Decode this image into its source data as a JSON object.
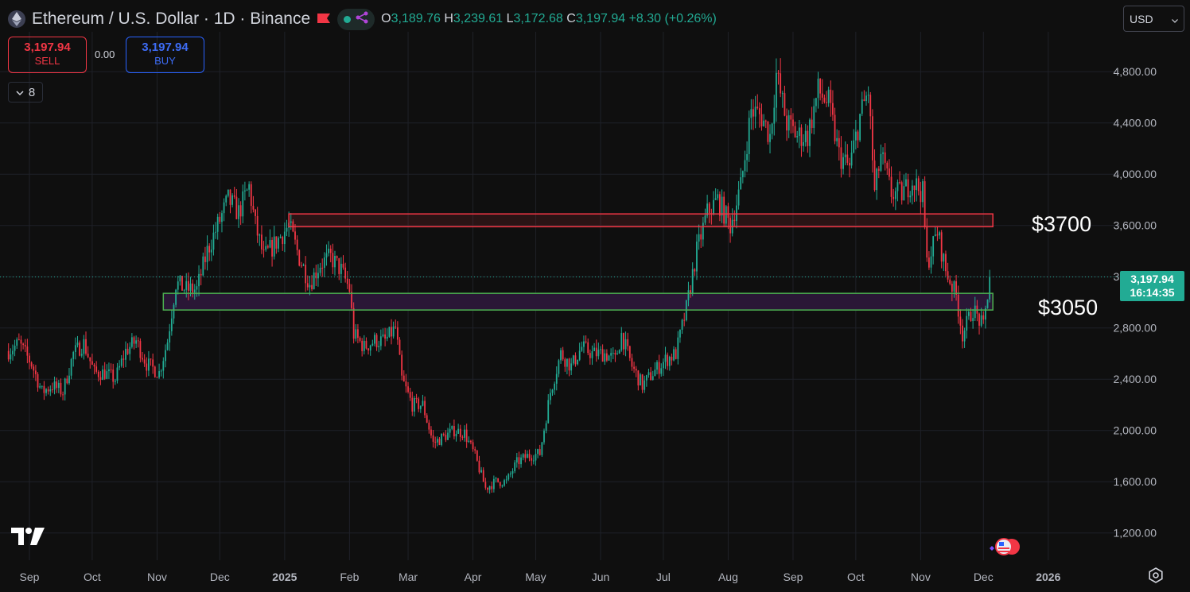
{
  "header": {
    "symbol_title": "Ethereum / U.S. Dollar · 1D · Binance",
    "ohlc": {
      "open_label": "O",
      "open": "3,189.76",
      "high_label": "H",
      "high": "3,239.61",
      "low_label": "L",
      "low": "3,172.68",
      "close_label": "C",
      "close": "3,197.94",
      "change": "+8.30 (+0.26%)"
    },
    "icons": [
      "ethereum-icon",
      "flag-icon",
      "dot-icon",
      "share-icon"
    ]
  },
  "trade": {
    "sell_price": "3,197.94",
    "sell_label": "SELL",
    "spread": "0.00",
    "buy_price": "3,197.94",
    "buy_label": "BUY"
  },
  "indicators": {
    "collapse_count": "8"
  },
  "currency": {
    "selected": "USD"
  },
  "last_price": {
    "price": "3,197.94",
    "countdown": "16:14:35"
  },
  "annotations": {
    "resistance_label": "$3700",
    "support_label": "$3050"
  },
  "colors": {
    "up": "#22ab94",
    "down": "#f23645",
    "background": "#0f0f0f",
    "resistance_box": "#f23645",
    "support_box": "#4caf50",
    "support_fill": "#2a1736"
  },
  "chart_data": {
    "type": "candlestick",
    "title": "Ethereum / U.S. Dollar · 1D · Binance",
    "ylim": [
      1050,
      4960
    ],
    "y_ticks": [
      1200,
      1600,
      2000,
      2400,
      2800,
      3200,
      3600,
      4000,
      4400,
      4800
    ],
    "y_tick_labels": [
      "1,200.00",
      "1,600.00",
      "2,000.00",
      "2,400.00",
      "2,800.00",
      "3,200.00",
      "3,600.00",
      "4,000.00",
      "4,400.00",
      "4,800.00"
    ],
    "x_ticks": [
      "Sep",
      "Oct",
      "Nov",
      "Dec",
      "2025",
      "Feb",
      "Mar",
      "Apr",
      "May",
      "Jun",
      "Jul",
      "Aug",
      "Sep",
      "Oct",
      "Nov",
      "Dec",
      "2026"
    ],
    "x_tick_dates": [
      "2024-09-01",
      "2024-10-01",
      "2024-11-01",
      "2024-12-01",
      "2025-01-01",
      "2025-02-01",
      "2025-03-01",
      "2025-04-01",
      "2025-05-01",
      "2025-06-01",
      "2025-07-01",
      "2025-08-01",
      "2025-09-01",
      "2025-10-01",
      "2025-11-01",
      "2025-12-01",
      "2026-01-01"
    ],
    "date_range": [
      "2024-08-22",
      "2025-12-04"
    ],
    "close_series": [
      [
        "2024-08-22",
        2620
      ],
      [
        "2024-08-27",
        2680
      ],
      [
        "2024-09-02",
        2520
      ],
      [
        "2024-09-07",
        2300
      ],
      [
        "2024-09-12",
        2350
      ],
      [
        "2024-09-17",
        2300
      ],
      [
        "2024-09-22",
        2600
      ],
      [
        "2024-09-27",
        2680
      ],
      [
        "2024-10-02",
        2450
      ],
      [
        "2024-10-07",
        2450
      ],
      [
        "2024-10-12",
        2400
      ],
      [
        "2024-10-17",
        2620
      ],
      [
        "2024-10-22",
        2700
      ],
      [
        "2024-10-27",
        2520
      ],
      [
        "2024-11-02",
        2450
      ],
      [
        "2024-11-06",
        2700
      ],
      [
        "2024-11-10",
        3150
      ],
      [
        "2024-11-15",
        3100
      ],
      [
        "2024-11-20",
        3100
      ],
      [
        "2024-11-25",
        3400
      ],
      [
        "2024-11-30",
        3600
      ],
      [
        "2024-12-05",
        3800
      ],
      [
        "2024-12-10",
        3700
      ],
      [
        "2024-12-15",
        3900
      ],
      [
        "2024-12-18",
        3600
      ],
      [
        "2024-12-22",
        3350
      ],
      [
        "2024-12-27",
        3450
      ],
      [
        "2025-01-03",
        3600
      ],
      [
        "2025-01-08",
        3350
      ],
      [
        "2025-01-13",
        3150
      ],
      [
        "2025-01-18",
        3300
      ],
      [
        "2025-01-23",
        3350
      ],
      [
        "2025-01-28",
        3250
      ],
      [
        "2025-02-01",
        3100
      ],
      [
        "2025-02-03",
        2750
      ],
      [
        "2025-02-08",
        2650
      ],
      [
        "2025-02-13",
        2700
      ],
      [
        "2025-02-18",
        2700
      ],
      [
        "2025-02-23",
        2800
      ],
      [
        "2025-02-26",
        2400
      ],
      [
        "2025-03-03",
        2200
      ],
      [
        "2025-03-08",
        2200
      ],
      [
        "2025-03-13",
        1900
      ],
      [
        "2025-03-18",
        1950
      ],
      [
        "2025-03-23",
        2000
      ],
      [
        "2025-03-28",
        1980
      ],
      [
        "2025-04-02",
        1800
      ],
      [
        "2025-04-07",
        1550
      ],
      [
        "2025-04-12",
        1600
      ],
      [
        "2025-04-17",
        1600
      ],
      [
        "2025-04-22",
        1750
      ],
      [
        "2025-04-27",
        1800
      ],
      [
        "2025-05-03",
        1820
      ],
      [
        "2025-05-08",
        2300
      ],
      [
        "2025-05-13",
        2600
      ],
      [
        "2025-05-18",
        2500
      ],
      [
        "2025-05-23",
        2650
      ],
      [
        "2025-05-28",
        2600
      ],
      [
        "2025-06-03",
        2600
      ],
      [
        "2025-06-08",
        2550
      ],
      [
        "2025-06-11",
        2750
      ],
      [
        "2025-06-16",
        2500
      ],
      [
        "2025-06-21",
        2350
      ],
      [
        "2025-06-26",
        2450
      ],
      [
        "2025-07-02",
        2550
      ],
      [
        "2025-07-07",
        2600
      ],
      [
        "2025-07-12",
        2950
      ],
      [
        "2025-07-17",
        3400
      ],
      [
        "2025-07-22",
        3700
      ],
      [
        "2025-07-27",
        3800
      ],
      [
        "2025-08-02",
        3600
      ],
      [
        "2025-08-07",
        3900
      ],
      [
        "2025-08-12",
        4500
      ],
      [
        "2025-08-17",
        4450
      ],
      [
        "2025-08-21",
        4300
      ],
      [
        "2025-08-24",
        4780
      ],
      [
        "2025-08-29",
        4400
      ],
      [
        "2025-09-03",
        4300
      ],
      [
        "2025-09-08",
        4300
      ],
      [
        "2025-09-13",
        4650
      ],
      [
        "2025-09-18",
        4550
      ],
      [
        "2025-09-23",
        4150
      ],
      [
        "2025-09-28",
        4050
      ],
      [
        "2025-10-03",
        4450
      ],
      [
        "2025-10-07",
        4650
      ],
      [
        "2025-10-10",
        3850
      ],
      [
        "2025-10-13",
        4150
      ],
      [
        "2025-10-18",
        3850
      ],
      [
        "2025-10-23",
        3850
      ],
      [
        "2025-10-28",
        3950
      ],
      [
        "2025-11-02",
        3850
      ],
      [
        "2025-11-04",
        3300
      ],
      [
        "2025-11-09",
        3550
      ],
      [
        "2025-11-13",
        3250
      ],
      [
        "2025-11-18",
        3050
      ],
      [
        "2025-11-21",
        2750
      ],
      [
        "2025-11-26",
        2950
      ],
      [
        "2025-12-01",
        2800
      ],
      [
        "2025-12-04",
        3197.94
      ]
    ],
    "zones": [
      {
        "label": "$3700",
        "low": 3590,
        "high": 3690,
        "from": "2025-01-03",
        "to": "2025-12-04"
      },
      {
        "label": "$3050",
        "low": 2940,
        "high": 3070,
        "from": "2024-11-04",
        "to": "2025-12-04"
      }
    ],
    "last_price": 3197.94
  }
}
